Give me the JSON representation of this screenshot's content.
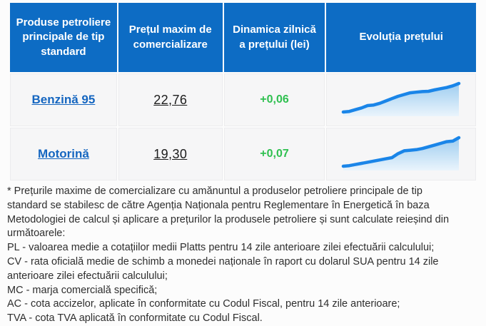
{
  "colors": {
    "page_bg": "#fcfcfc",
    "header_bg": "#0d6cc4",
    "header_text": "#ffffff",
    "row_bg": "#f6f6f7",
    "product_link": "#1566c0",
    "price_text": "#1c1c1c",
    "positive_change": "#2fc050",
    "spark_line": "#1a85e8",
    "spark_fill_top": "#9ecdf0",
    "spark_fill_bottom": "#eaf4fc",
    "footnote_text": "#2e2e2e"
  },
  "table": {
    "headers": [
      "Produse petroliere principale de tip standard",
      "Prețul maxim de comercializare",
      "Dinamica zilnică a prețului (lei)",
      "Evoluția prețului"
    ],
    "rows": [
      {
        "product": "Benzină 95",
        "price": "22,76",
        "change": "+0,06"
      },
      {
        "product": "Motorină",
        "price": "19,30",
        "change": "+0,07"
      }
    ]
  },
  "chart_data": [
    {
      "type": "line",
      "name": "Benzină 95 — evoluția prețului (sparkline, axe ascunse, valori relative)",
      "style": "area-sparkline",
      "x": [
        1,
        2,
        3,
        4,
        5,
        6,
        7,
        8,
        9,
        10,
        11,
        12,
        13,
        14,
        15,
        16,
        17,
        18,
        19,
        20
      ],
      "values": [
        1,
        2,
        5,
        8,
        12,
        13,
        16,
        20,
        24,
        28,
        31,
        34,
        35,
        36,
        36.5,
        39,
        41,
        43,
        46,
        50
      ],
      "xlabel": "",
      "ylabel": "",
      "grid": false,
      "legend": "none"
    },
    {
      "type": "line",
      "name": "Motorină — evoluția prețului (sparkline, axe ascunse, valori relative)",
      "style": "area-sparkline",
      "x": [
        1,
        2,
        3,
        4,
        5,
        6,
        7,
        8,
        9,
        10,
        11,
        12,
        13,
        14,
        15,
        16,
        17,
        18,
        19,
        20
      ],
      "values": [
        0,
        1,
        3,
        5,
        7,
        9,
        11,
        13,
        15,
        22,
        27,
        28,
        29,
        31,
        34,
        37,
        40,
        43,
        44,
        50
      ],
      "xlabel": "",
      "ylabel": "",
      "grid": false,
      "legend": "none"
    }
  ],
  "footnote": {
    "lines": [
      "* Prețurile maxime de comercializare cu amănuntul a produselor petroliere principale de tip",
      "standard se stabilesc de către Agenția Naționala pentru Reglementare în Energetică în baza",
      "Metodologiei de calcul și aplicare a prețurilor la produsele petroliere și sunt calculate reieșind din",
      "următoarele:",
      "PL - valoarea medie a cotațiilor medii Platts pentru 14 zile anterioare zilei efectuării calculului;",
      "CV - rata oficială medie de schimb a monedei naționale în raport cu dolarul SUA pentru 14 zile",
      "anterioare zilei efectuării calculului;",
      "MC - marja comercială specifică;",
      "AC - cota accizelor, aplicate în conformitate cu Codul Fiscal, pentru 14 zile anterioare;",
      "TVA - cota TVA aplicată în conformitate cu Codul Fiscal."
    ]
  }
}
